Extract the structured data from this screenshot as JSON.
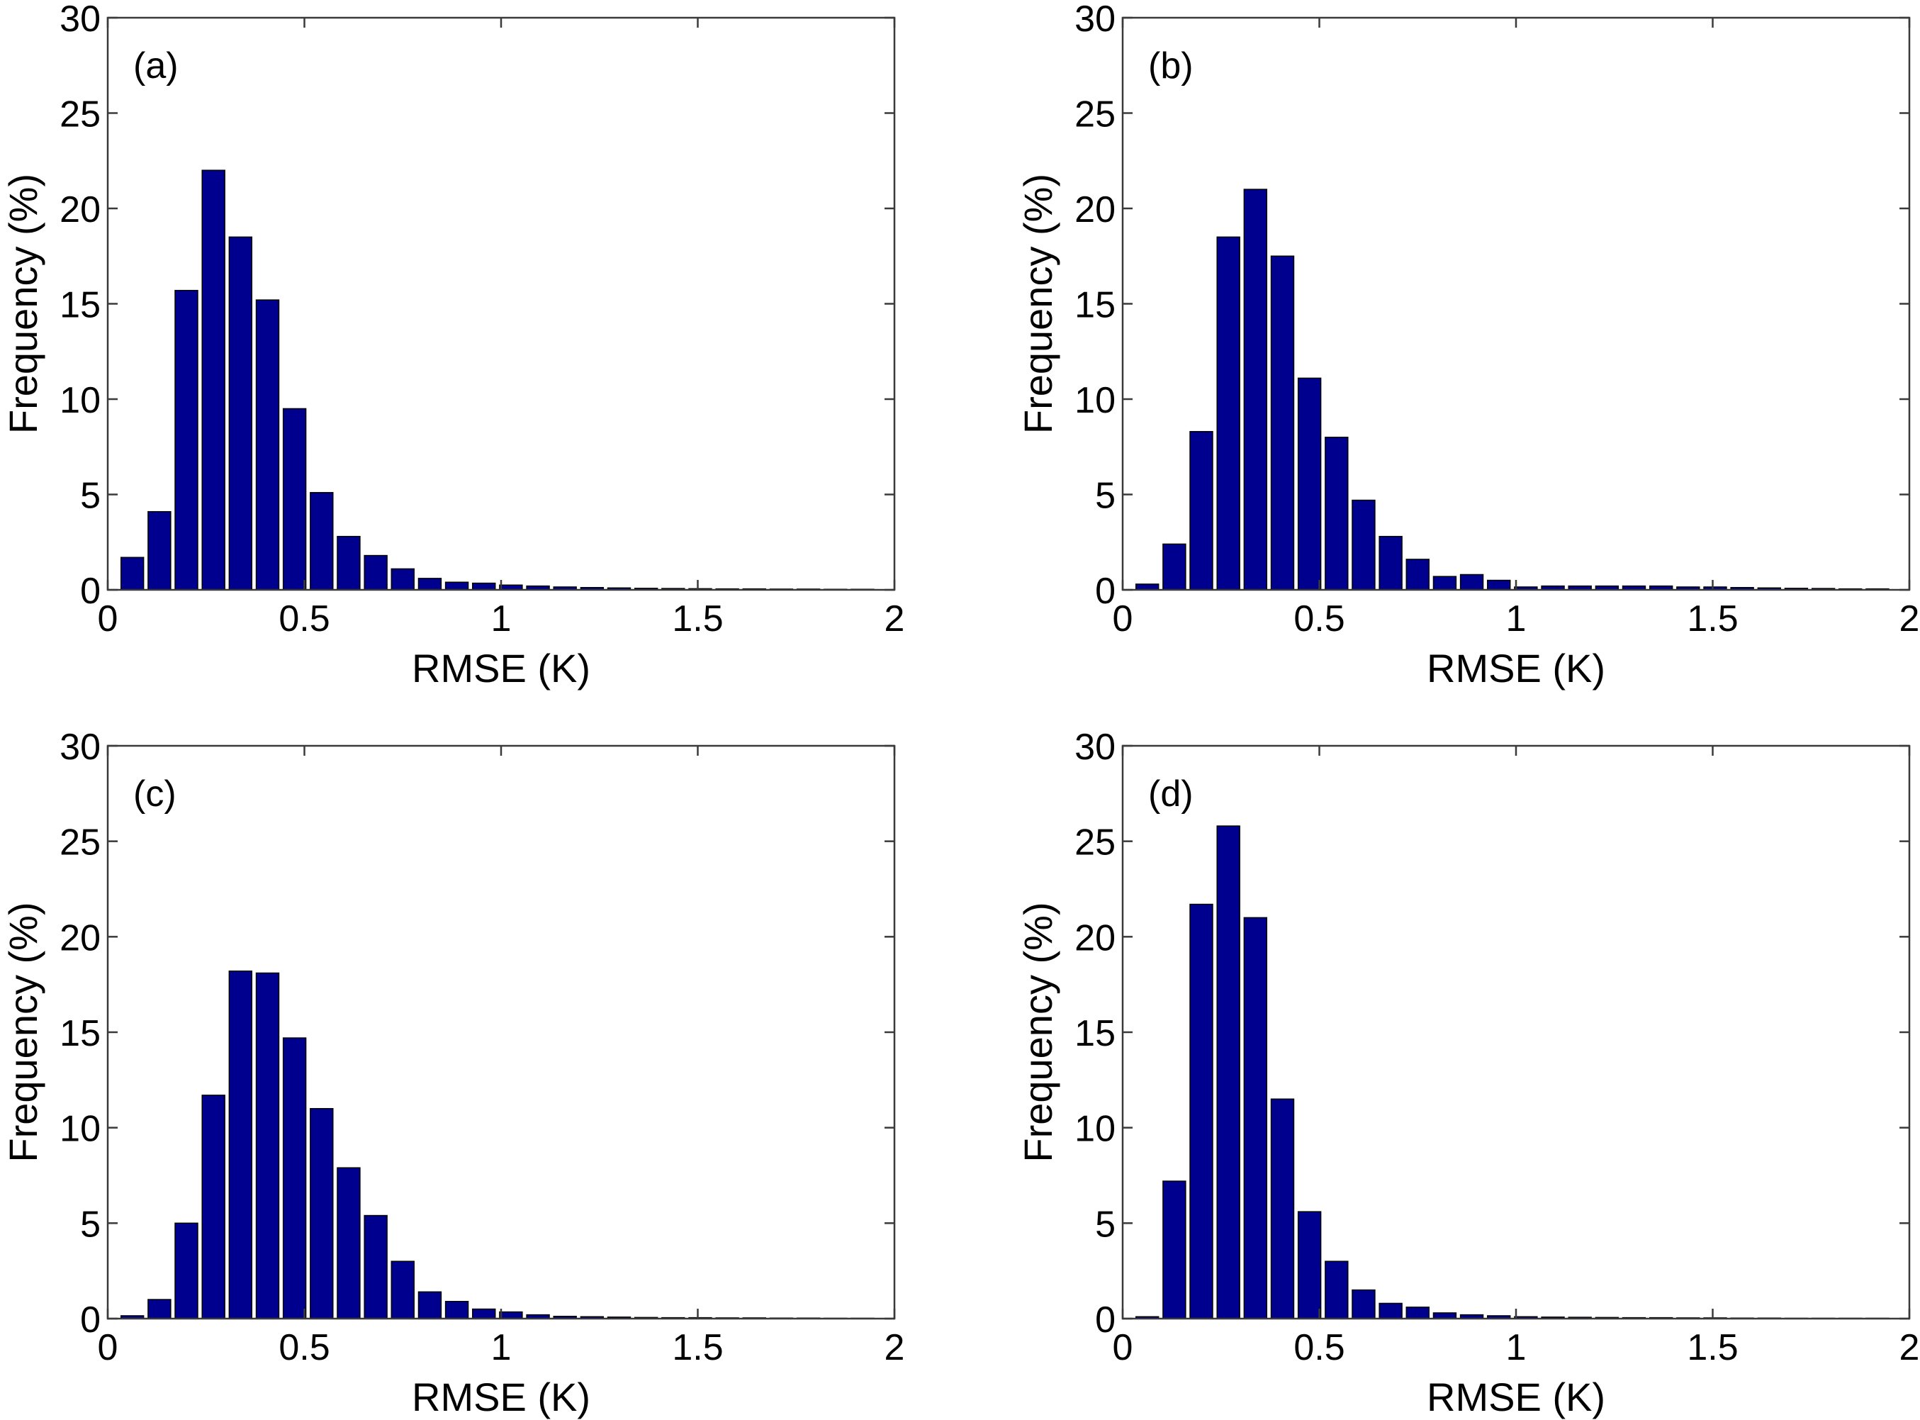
{
  "chart_data": [
    {
      "type": "bar",
      "panel": "(a)",
      "xlabel": "RMSE (K)",
      "ylabel": "Frequency (%)",
      "xlim": [
        0,
        2
      ],
      "ylim": [
        0,
        30
      ],
      "xticks": [
        "0",
        "0.5",
        "1",
        "1.5",
        "2"
      ],
      "yticks": [
        "0",
        "5",
        "10",
        "15",
        "20",
        "25",
        "30"
      ],
      "x": [
        0.0625,
        0.1313,
        0.2,
        0.2688,
        0.3375,
        0.4063,
        0.475,
        0.5438,
        0.6125,
        0.6813,
        0.75,
        0.8188,
        0.8875,
        0.9563,
        1.025,
        1.0938,
        1.1625,
        1.2313,
        1.3,
        1.3688,
        1.4375,
        1.5063,
        1.575,
        1.6438,
        1.7125,
        1.7813,
        1.85,
        1.9188
      ],
      "values": [
        1.7,
        4.1,
        15.7,
        22.0,
        18.5,
        15.2,
        9.5,
        5.1,
        2.8,
        1.8,
        1.1,
        0.6,
        0.4,
        0.35,
        0.25,
        0.2,
        0.15,
        0.12,
        0.1,
        0.08,
        0.07,
        0.06,
        0.05,
        0.05,
        0.04,
        0.04,
        0.03,
        0.03
      ]
    },
    {
      "type": "bar",
      "panel": "(b)",
      "xlabel": "RMSE (K)",
      "ylabel": "Frequency (%)",
      "xlim": [
        0,
        2
      ],
      "ylim": [
        0,
        30
      ],
      "xticks": [
        "0",
        "0.5",
        "1",
        "1.5",
        "2"
      ],
      "yticks": [
        "0",
        "5",
        "10",
        "15",
        "20",
        "25",
        "30"
      ],
      "x": [
        0.0625,
        0.1313,
        0.2,
        0.2688,
        0.3375,
        0.4063,
        0.475,
        0.5438,
        0.6125,
        0.6813,
        0.75,
        0.8188,
        0.8875,
        0.9563,
        1.025,
        1.0938,
        1.1625,
        1.2313,
        1.3,
        1.3688,
        1.4375,
        1.5063,
        1.575,
        1.6438,
        1.7125,
        1.7813,
        1.85,
        1.9188
      ],
      "values": [
        0.3,
        2.4,
        8.3,
        18.5,
        21.0,
        17.5,
        11.1,
        8.0,
        4.7,
        2.8,
        1.6,
        0.7,
        0.8,
        0.5,
        0.15,
        0.2,
        0.2,
        0.2,
        0.2,
        0.2,
        0.15,
        0.15,
        0.12,
        0.1,
        0.08,
        0.07,
        0.05,
        0.05
      ]
    },
    {
      "type": "bar",
      "panel": "(c)",
      "xlabel": "RMSE (K)",
      "ylabel": "Frequency (%)",
      "xlim": [
        0,
        2
      ],
      "ylim": [
        0,
        30
      ],
      "xticks": [
        "0",
        "0.5",
        "1",
        "1.5",
        "2"
      ],
      "yticks": [
        "0",
        "5",
        "10",
        "15",
        "20",
        "25",
        "30"
      ],
      "x": [
        0.0625,
        0.1313,
        0.2,
        0.2688,
        0.3375,
        0.4063,
        0.475,
        0.5438,
        0.6125,
        0.6813,
        0.75,
        0.8188,
        0.8875,
        0.9563,
        1.025,
        1.0938,
        1.1625,
        1.2313,
        1.3,
        1.3688,
        1.4375,
        1.5063,
        1.575,
        1.6438,
        1.7125,
        1.7813,
        1.85,
        1.9188
      ],
      "values": [
        0.15,
        1.0,
        5.0,
        11.7,
        18.2,
        18.1,
        14.7,
        11.0,
        7.9,
        5.4,
        3.0,
        1.4,
        0.9,
        0.5,
        0.35,
        0.2,
        0.12,
        0.1,
        0.08,
        0.06,
        0.05,
        0.05,
        0.04,
        0.04,
        0.03,
        0.03,
        0.02,
        0.02
      ]
    },
    {
      "type": "bar",
      "panel": "(d)",
      "xlabel": "RMSE (K)",
      "ylabel": "Frequency (%)",
      "xlim": [
        0,
        2
      ],
      "ylim": [
        0,
        30
      ],
      "xticks": [
        "0",
        "0.5",
        "1",
        "1.5",
        "2"
      ],
      "yticks": [
        "0",
        "5",
        "10",
        "15",
        "20",
        "25",
        "30"
      ],
      "x": [
        0.0625,
        0.1313,
        0.2,
        0.2688,
        0.3375,
        0.4063,
        0.475,
        0.5438,
        0.6125,
        0.6813,
        0.75,
        0.8188,
        0.8875,
        0.9563,
        1.025,
        1.0938,
        1.1625,
        1.2313,
        1.3,
        1.3688,
        1.4375,
        1.5063,
        1.575,
        1.6438,
        1.7125,
        1.7813,
        1.85,
        1.9188
      ],
      "values": [
        0.1,
        7.2,
        21.7,
        25.8,
        21.0,
        11.5,
        5.6,
        3.0,
        1.5,
        0.8,
        0.6,
        0.3,
        0.2,
        0.15,
        0.1,
        0.08,
        0.07,
        0.06,
        0.05,
        0.05,
        0.04,
        0.04,
        0.03,
        0.03,
        0.02,
        0.02,
        0.02,
        0.02
      ]
    }
  ]
}
